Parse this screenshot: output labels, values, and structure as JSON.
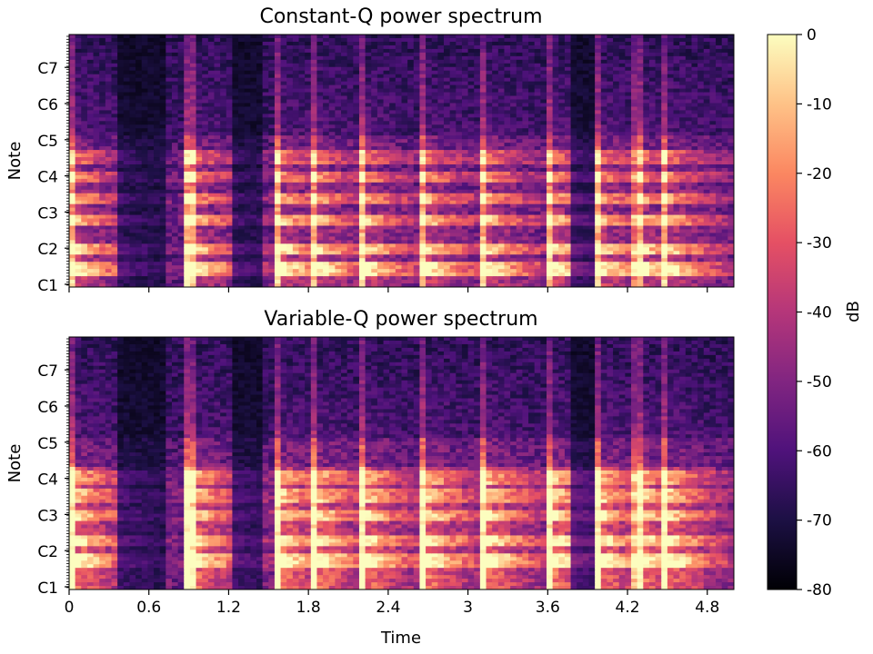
{
  "chart_data": [
    {
      "type": "heatmap",
      "title": "Constant-Q power spectrum",
      "xlabel": "",
      "ylabel": "Note",
      "xlim": [
        0,
        5.0
      ],
      "x_ticks": [
        0,
        0.6,
        1.2,
        1.8,
        2.4,
        3.0,
        3.6,
        4.2,
        4.8
      ],
      "x_tick_labels": [
        "",
        "",
        "",
        "",
        "",
        "",
        "",
        "",
        ""
      ],
      "y_scale": "log (musical notes)",
      "y_tick_labels": [
        "C1",
        "C2",
        "C3",
        "C4",
        "C5",
        "C6",
        "C7"
      ],
      "value_range_db": [
        -80,
        0
      ],
      "colormap": "magma",
      "notable_features": {
        "onsets_s": [
          0.0,
          0.88,
          1.55,
          1.82,
          2.18,
          2.65,
          3.1,
          3.6,
          3.95,
          4.25,
          4.45
        ],
        "harmonic_bands_note": [
          "C2",
          "C3",
          "C4",
          "C5"
        ]
      }
    },
    {
      "type": "heatmap",
      "title": "Variable-Q power spectrum",
      "xlabel": "Time",
      "ylabel": "Note",
      "xlim": [
        0,
        5.0
      ],
      "x_ticks": [
        0,
        0.6,
        1.2,
        1.8,
        2.4,
        3.0,
        3.6,
        4.2,
        4.8
      ],
      "x_tick_labels": [
        "0",
        "0.6",
        "1.2",
        "1.8",
        "2.4",
        "3",
        "3.6",
        "4.2",
        "4.8"
      ],
      "y_scale": "log (musical notes)",
      "y_tick_labels": [
        "C1",
        "C2",
        "C3",
        "C4",
        "C5",
        "C6",
        "C7"
      ],
      "value_range_db": [
        -80,
        0
      ],
      "colormap": "magma"
    }
  ],
  "colorbar": {
    "label": "dB",
    "ticks": [
      "0",
      "-10",
      "-20",
      "-30",
      "-40",
      "-50",
      "-60",
      "-70",
      "-80"
    ],
    "range": [
      -80,
      0
    ],
    "colormap": "magma",
    "colors": [
      "#000004",
      "#1c1044",
      "#4f127b",
      "#812581",
      "#b5367a",
      "#e55064",
      "#fb8761",
      "#fec287",
      "#fcfdbf"
    ]
  }
}
